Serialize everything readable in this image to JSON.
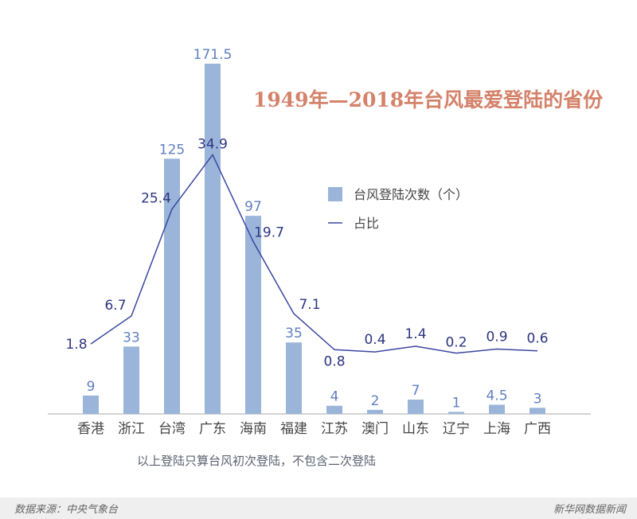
{
  "chart_data": {
    "type": "bar",
    "title": "1949年—2018年台风最爱登陆的省份",
    "categories": [
      "香港",
      "浙江",
      "台湾",
      "广东",
      "海南",
      "福建",
      "江苏",
      "澳门",
      "山东",
      "辽宁",
      "上海",
      "广西"
    ],
    "series": [
      {
        "name": "台风登陆次数（个）",
        "type": "bar",
        "values": [
          9,
          33,
          125,
          171.5,
          97,
          35,
          4,
          2,
          7,
          1,
          4.5,
          3
        ],
        "labels": [
          "9",
          "33",
          "125",
          "171.5",
          "97",
          "35",
          "4",
          "2",
          "7",
          "1",
          "4.5",
          "3"
        ],
        "color": "#9bb5da"
      },
      {
        "name": "占比",
        "type": "line",
        "values": [
          1.8,
          6.7,
          25.4,
          34.9,
          19.7,
          7.1,
          0.8,
          0.4,
          1.4,
          0.2,
          0.9,
          0.6
        ],
        "labels": [
          "1.8",
          "6.7",
          "25.4",
          "34.9",
          "19.7",
          "7.1",
          "0.8",
          "0.4",
          "1.4",
          "0.2",
          "0.9",
          "0.6"
        ],
        "color": "#3a47a0"
      }
    ],
    "legend_position": "right-middle",
    "grid": false,
    "note": "以上登陆只算台风初次登陆，不包含二次登陆"
  },
  "footer": {
    "source": "数据来源：中央气象台",
    "brand": "新华网数据新闻"
  },
  "colors": {
    "title": "#d4826a",
    "bar": "#9bb5da",
    "bar_label": "#5f80c0",
    "line": "#3a47a0",
    "line_label": "#2d3580"
  }
}
